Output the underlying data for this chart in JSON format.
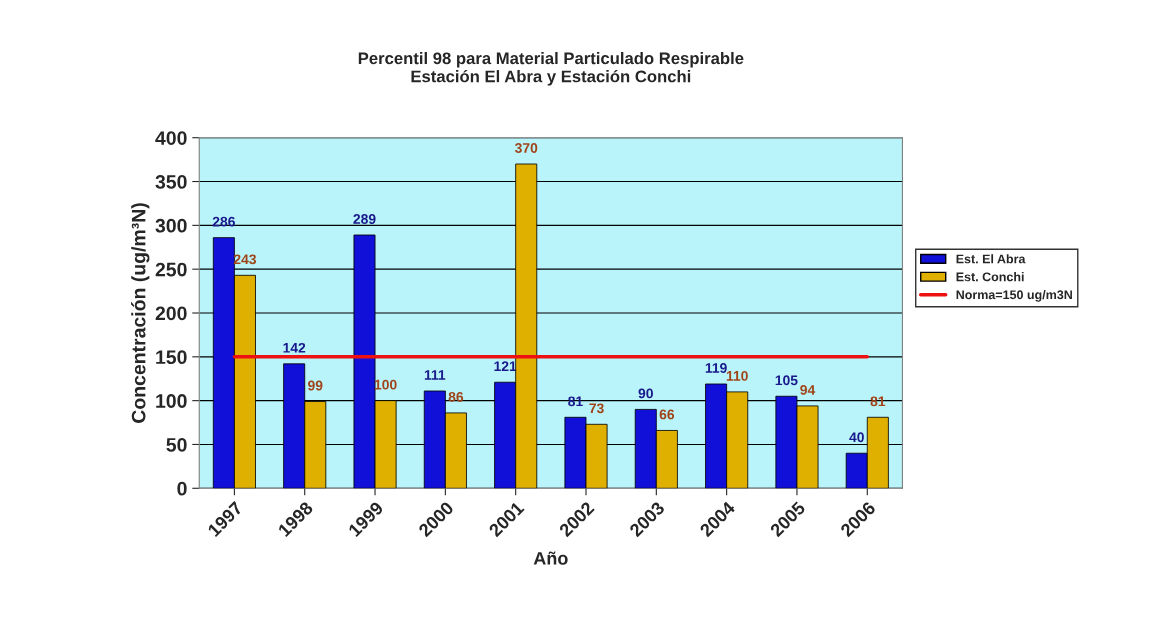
{
  "chart_data": {
    "type": "bar",
    "title": "Percentil 98 para Material Particulado Respirable\nEstación El Abra y Estación Conchi",
    "xlabel": "Año",
    "ylabel": "Concentración (ug/m³N)",
    "categories": [
      "1997",
      "1998",
      "1999",
      "2000",
      "2001",
      "2002",
      "2003",
      "2004",
      "2005",
      "2006"
    ],
    "series": [
      {
        "name": "Est. El Abra",
        "color": "#1010d8",
        "values": [
          286,
          142,
          289,
          111,
          121,
          81,
          90,
          119,
          105,
          40
        ]
      },
      {
        "name": "Est. Conchi",
        "color": "#e0b000",
        "values": [
          243,
          99,
          100,
          86,
          370,
          73,
          66,
          110,
          94,
          81
        ]
      }
    ],
    "ref_lines": [
      {
        "axis": "y",
        "value": 150,
        "label": "Norma=150 ug/m3N",
        "color": "#ee1111"
      }
    ],
    "ylim": [
      0,
      400
    ],
    "yticks": [
      0,
      50,
      100,
      150,
      200,
      250,
      300,
      350,
      400
    ],
    "grid": "y",
    "legend": "right",
    "data_labels": true
  }
}
